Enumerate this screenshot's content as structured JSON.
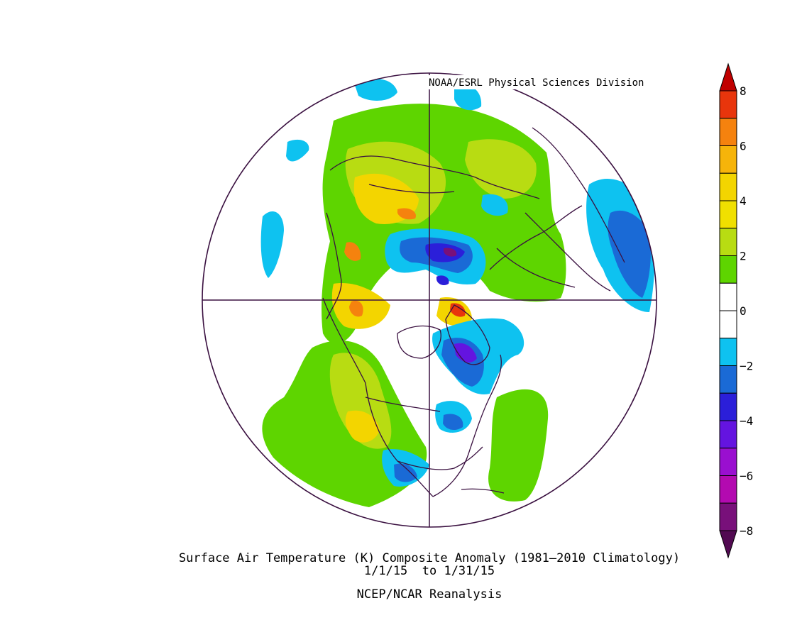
{
  "credit": "NOAA/ESRL Physical Sciences Division",
  "title_line1": "Surface Air Temperature (K) Composite Anomaly (1981–2010 Climatology)",
  "title_line2": "1/1/15  to 1/31/15",
  "title_line3": "NCEP/NCAR Reanalysis",
  "colorbar": {
    "ticks": [
      "8",
      "6",
      "4",
      "2",
      "0",
      "−2",
      "−4",
      "−6",
      "−8"
    ],
    "levels": [
      {
        "range": "above 8",
        "color": "#c00000"
      },
      {
        "range": "7 to 8",
        "color": "#e8350c"
      },
      {
        "range": "6 to 7",
        "color": "#f5820e"
      },
      {
        "range": "5 to 6",
        "color": "#f6b40a"
      },
      {
        "range": "4 to 5",
        "color": "#f3d500"
      },
      {
        "range": "3 to 4",
        "color": "#f0e000"
      },
      {
        "range": "2 to 3",
        "color": "#b8dc12"
      },
      {
        "range": "1 to 2",
        "color": "#5ed500"
      },
      {
        "range": "0 to 1",
        "color": "#ffffff"
      },
      {
        "range": "-1 to 0",
        "color": "#ffffff"
      },
      {
        "range": "-2 to -1",
        "color": "#0ec2f0"
      },
      {
        "range": "-3 to -2",
        "color": "#1a6ad6"
      },
      {
        "range": "-4 to -3",
        "color": "#2b1fd9"
      },
      {
        "range": "-5 to -4",
        "color": "#6414e0"
      },
      {
        "range": "-6 to -5",
        "color": "#9a0fd0"
      },
      {
        "range": "-7 to -6",
        "color": "#b30ab0"
      },
      {
        "range": "-8 to -7",
        "color": "#78107a"
      },
      {
        "range": "below -8",
        "color": "#520a52"
      }
    ]
  },
  "map_colors": {
    "outline": "#3a1040",
    "coast": "#3a1040"
  }
}
